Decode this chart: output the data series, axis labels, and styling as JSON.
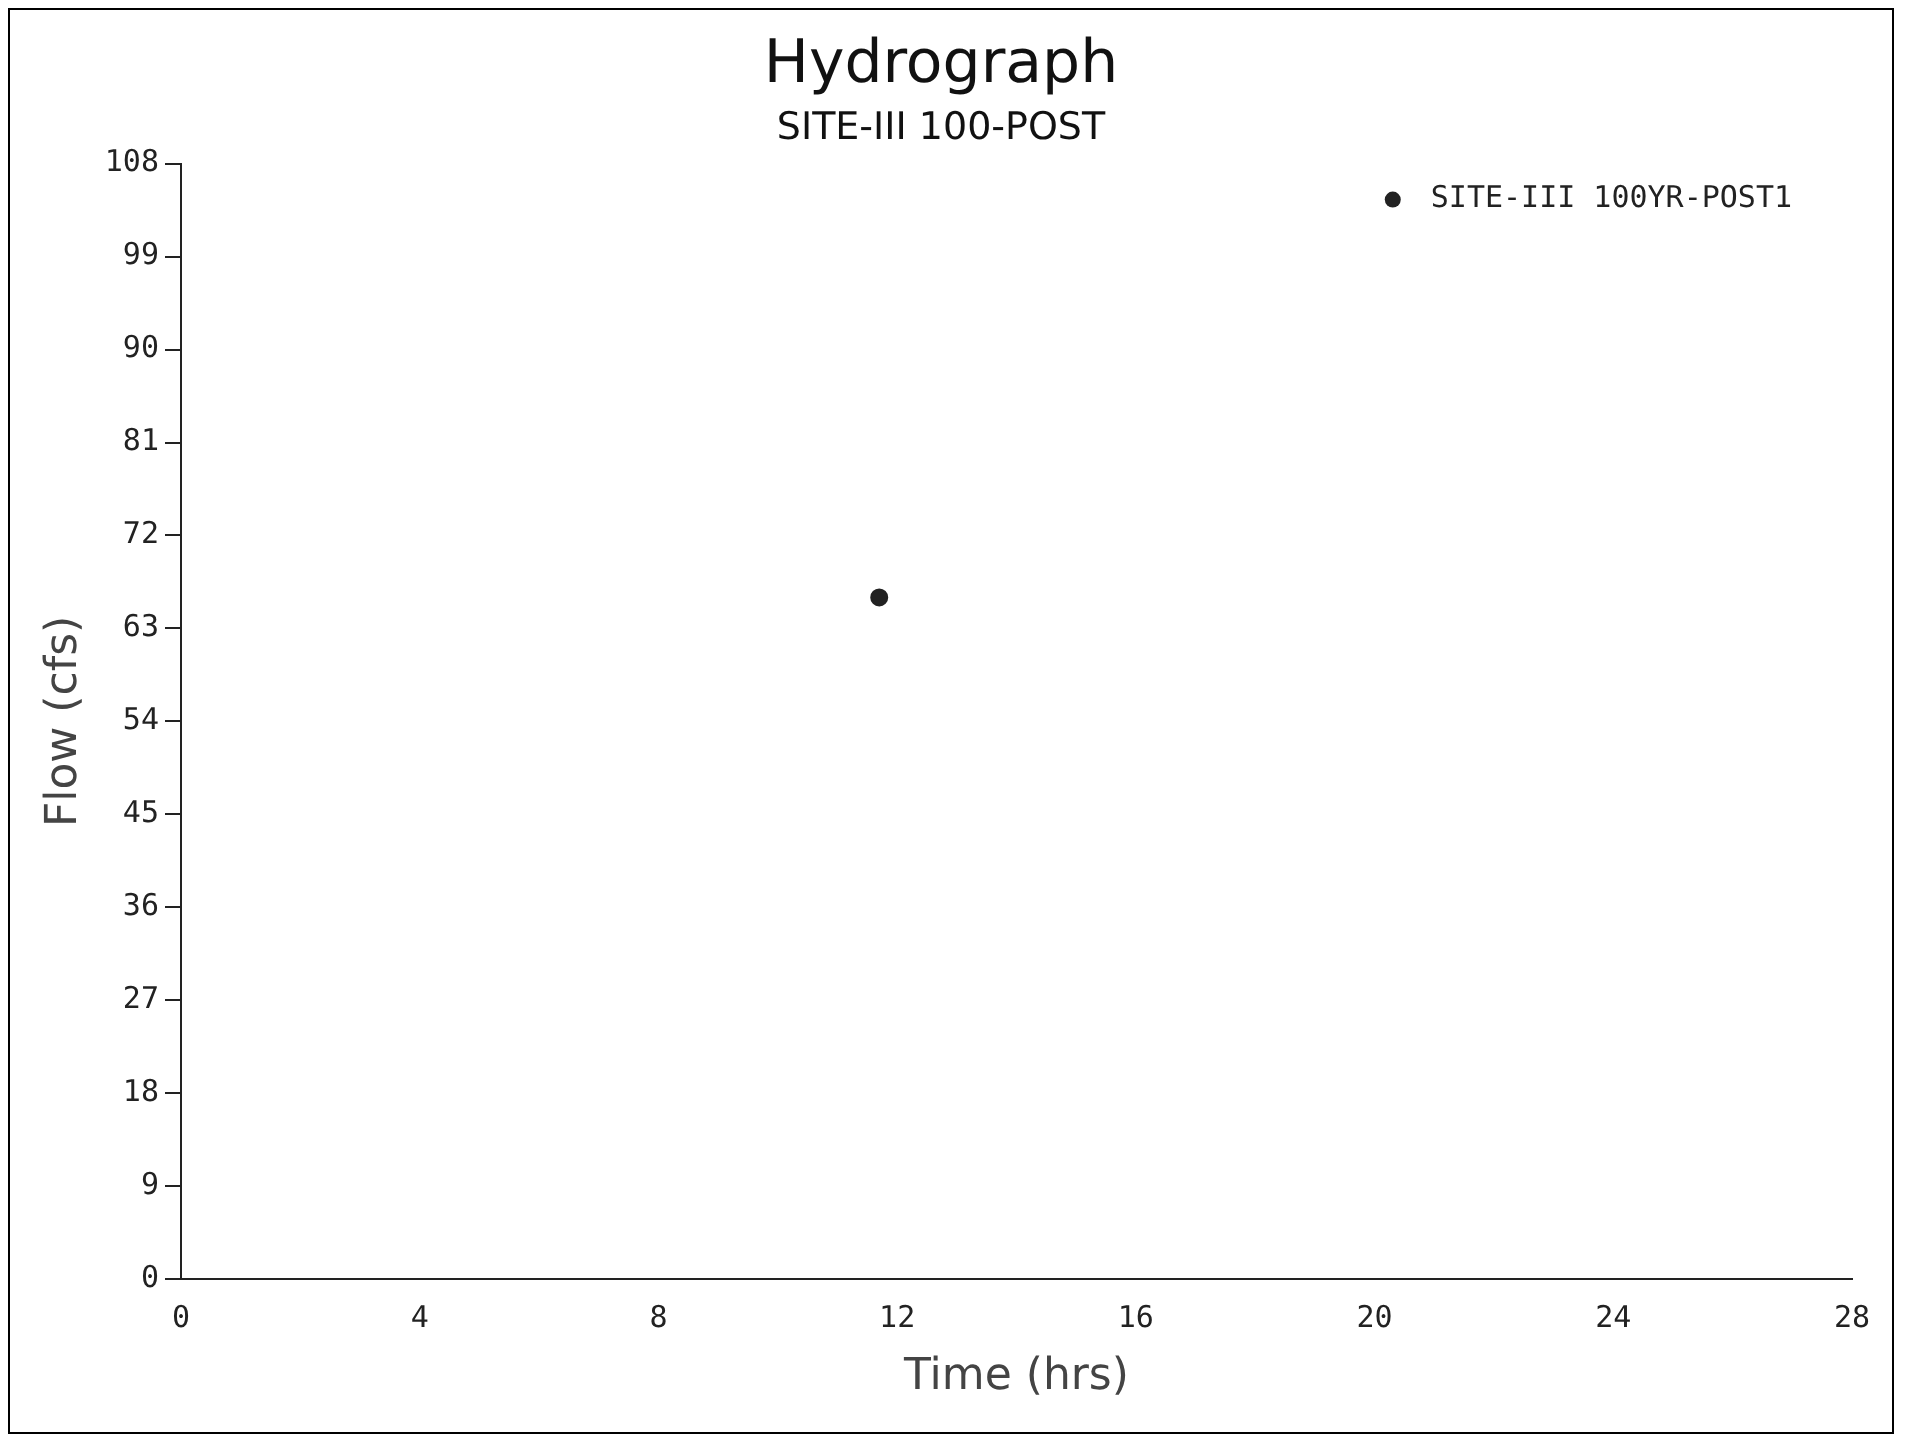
{
  "chart_data": {
    "type": "scatter",
    "title": "Hydrograph",
    "subtitle": "SITE-III 100-POST",
    "xlabel": "Time (hrs)",
    "ylabel": "Flow (cfs)",
    "x": [
      11.7
    ],
    "series": [
      {
        "name": "SITE-III 100YR-POST1",
        "color": "#222222",
        "values": [
          66
        ]
      }
    ],
    "xlim": [
      0,
      28
    ],
    "xticks": [
      0,
      4,
      8,
      12,
      16,
      20,
      24,
      28
    ],
    "ylim": [
      0,
      108
    ],
    "yticks": [
      0,
      9,
      18,
      27,
      36,
      45,
      54,
      63,
      72,
      81,
      90,
      99,
      108
    ],
    "grid": false,
    "legend": "top right",
    "marker": "circle"
  }
}
